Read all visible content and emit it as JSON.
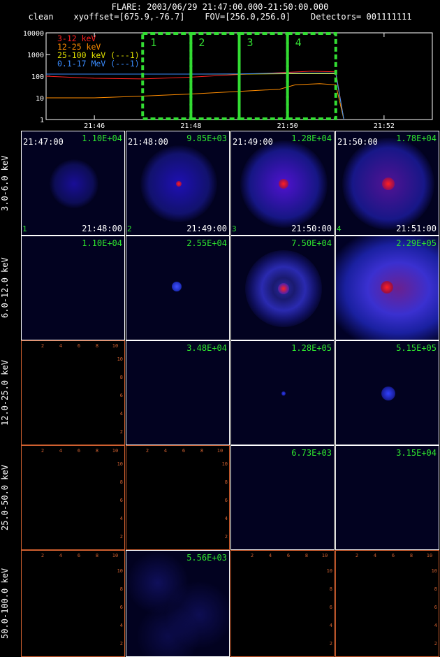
{
  "header": {
    "line1": "FLARE: 2003/06/29 21:47:00.000-21:50:00.000",
    "line2": "clean    xyoffset=[675.9,-76.7]    FOV=[256.0,256.0]    Detectors= 001111111"
  },
  "chart_data": [
    {
      "type": "line",
      "yscale": "log",
      "ylim": [
        1,
        10000
      ],
      "yticks": [
        "1",
        "10",
        "100",
        "1000",
        "10000"
      ],
      "xlim": [
        "21:45:00",
        "21:53:00"
      ],
      "xticks": [
        "21:46",
        "21:48",
        "21:50",
        "21:52"
      ],
      "series": [
        {
          "name": "3-12 keV",
          "color": "#ff2020",
          "x": [
            "21:45:00",
            "21:46:00",
            "21:47:00",
            "21:48:00",
            "21:49:00",
            "21:50:00",
            "21:50:30",
            "21:51:00",
            "21:51:10"
          ],
          "values": [
            100,
            80,
            75,
            90,
            120,
            150,
            170,
            160,
            1
          ]
        },
        {
          "name": "12-25 keV",
          "color": "#ff8c00",
          "x": [
            "21:45:00",
            "21:46:00",
            "21:47:00",
            "21:48:00",
            "21:49:00",
            "21:49:50",
            "21:50:10",
            "21:50:40",
            "21:51:00",
            "21:51:10"
          ],
          "values": [
            10,
            10,
            12,
            15,
            20,
            25,
            40,
            45,
            40,
            1
          ]
        },
        {
          "name": "25-100 keV (---1)",
          "color": "#e0e000",
          "x": [
            "21:45:00",
            "21:46:00",
            "21:47:00",
            "21:48:00",
            "21:49:00",
            "21:50:00",
            "21:51:00",
            "21:51:10"
          ],
          "values": [
            125,
            125,
            125,
            125,
            125,
            130,
            130,
            1
          ]
        },
        {
          "name": "0.1-17 MeV (---1)",
          "color": "#3a8cff",
          "x": [
            "21:45:00",
            "21:46:00",
            "21:47:00",
            "21:48:00",
            "21:49:00",
            "21:50:00",
            "21:51:00",
            "21:51:10"
          ],
          "values": [
            125,
            125,
            125,
            125,
            128,
            140,
            140,
            1
          ]
        }
      ],
      "intervals": [
        {
          "label": "1",
          "start": "21:47:00",
          "end": "21:48:00"
        },
        {
          "label": "2",
          "start": "21:48:00",
          "end": "21:49:00"
        },
        {
          "label": "3",
          "start": "21:49:00",
          "end": "21:50:00"
        },
        {
          "label": "4",
          "start": "21:50:00",
          "end": "21:51:00"
        }
      ],
      "colors": {
        "axis": "#ffffff",
        "interval_box": "#33dd33"
      }
    },
    {
      "type": "heatmap",
      "energy_bands": [
        "3.0-6.0 keV",
        "6.0-12.0 keV",
        "12.0-25.0 keV",
        "25.0-50.0 keV",
        "50.0-100.0 keV"
      ],
      "time_bins": [
        {
          "index": "1",
          "start": "21:47:00",
          "end": "21:48:00"
        },
        {
          "index": "2",
          "start": "21:48:00",
          "end": "21:49:00"
        },
        {
          "index": "3",
          "start": "21:49:00",
          "end": "21:50:00"
        },
        {
          "index": "4",
          "start": "21:50:00",
          "end": "21:51:00"
        }
      ],
      "image_max": [
        [
          "1.10E+04",
          "9.85E+03",
          "1.28E+04",
          "1.78E+04"
        ],
        [
          "1.10E+04",
          "2.55E+04",
          "7.50E+04",
          "2.29E+05"
        ],
        [
          "",
          "3.48E+04",
          "1.28E+05",
          "5.15E+05"
        ],
        [
          "",
          "",
          "6.73E+03",
          "3.15E+04"
        ],
        [
          "",
          "5.56E+03",
          "",
          ""
        ]
      ],
      "empty_axis_ticks": [
        "2",
        "4",
        "6",
        "8",
        "10"
      ],
      "colors": {
        "frame": "#ffffff",
        "empty_frame": "#d06030",
        "max_label": "#2fe82f"
      }
    }
  ]
}
